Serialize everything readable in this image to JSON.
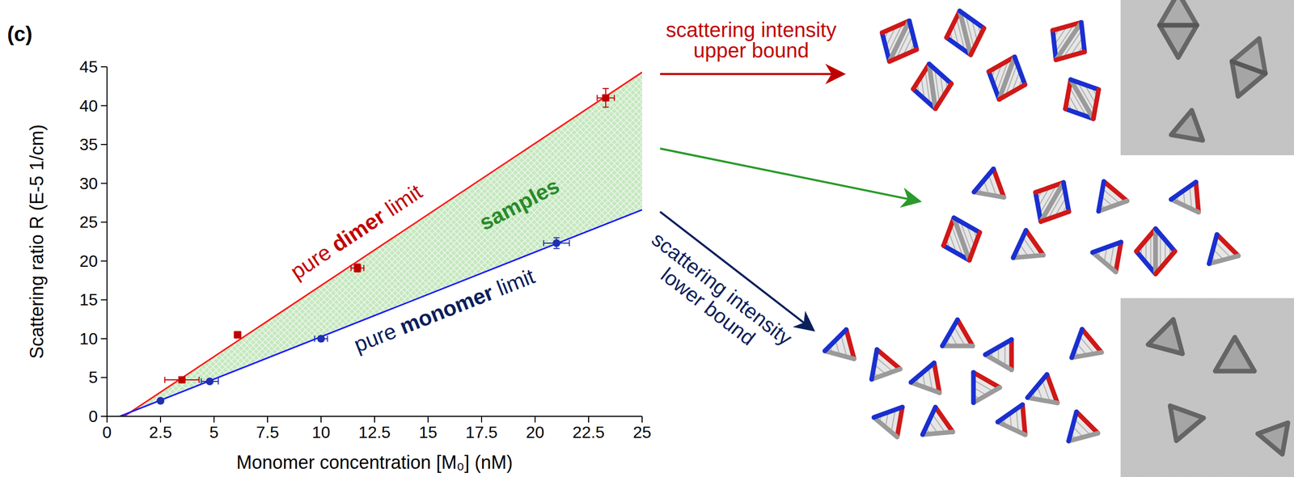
{
  "chart_data": {
    "type": "scatter",
    "panel_label": "(c)",
    "x_label": "Monomer concentration [M₀] (nM)",
    "y_label": "Scattering ratio R (E-5 1/cm)",
    "xlim": [
      0,
      25
    ],
    "xticks": [
      0,
      2.5,
      5,
      7.5,
      10,
      12.5,
      15,
      17.5,
      20,
      22.5,
      25
    ],
    "ylim": [
      0,
      45
    ],
    "yticks": [
      0,
      5,
      10,
      15,
      20,
      25,
      30,
      35,
      40,
      45
    ],
    "series": [
      {
        "type": "line",
        "color": "#ff1a1a",
        "line_style": "solid",
        "x": [
          0.8,
          25
        ],
        "values": [
          0,
          44.3
        ]
      },
      {
        "type": "line",
        "color": "#1a1aff",
        "line_style": "solid",
        "x": [
          0.6,
          25
        ],
        "values": [
          0,
          26.6
        ]
      },
      {
        "type": "scatter",
        "color": "#c00000",
        "marker": "square",
        "x": [
          3.5,
          6.1,
          11.7,
          23.3
        ],
        "values": [
          4.7,
          10.5,
          19.1,
          41.0
        ],
        "x_error": [
          0.8,
          0.15,
          0.3,
          0.4
        ],
        "y_error": [
          0.3,
          0.4,
          0.5,
          1.2
        ]
      },
      {
        "type": "scatter",
        "color": "#1f2fb0",
        "marker": "circle",
        "x": [
          2.5,
          4.8,
          10.0,
          21.0
        ],
        "values": [
          2.0,
          4.5,
          10.0,
          22.3
        ],
        "x_error": [
          0.1,
          0.4,
          0.3,
          0.6
        ],
        "y_error": [
          0.2,
          0.2,
          0.3,
          0.7
        ]
      }
    ],
    "annotations": {
      "dimer_limit": [
        "pure ",
        "dimer",
        " limit"
      ],
      "monomer_limit": [
        "pure ",
        "monomer",
        " limit"
      ],
      "samples": "samples",
      "upper_bound": [
        "scattering intensity",
        "upper bound"
      ],
      "lower_bound": [
        "scattering intensity",
        "lower bound"
      ]
    }
  }
}
